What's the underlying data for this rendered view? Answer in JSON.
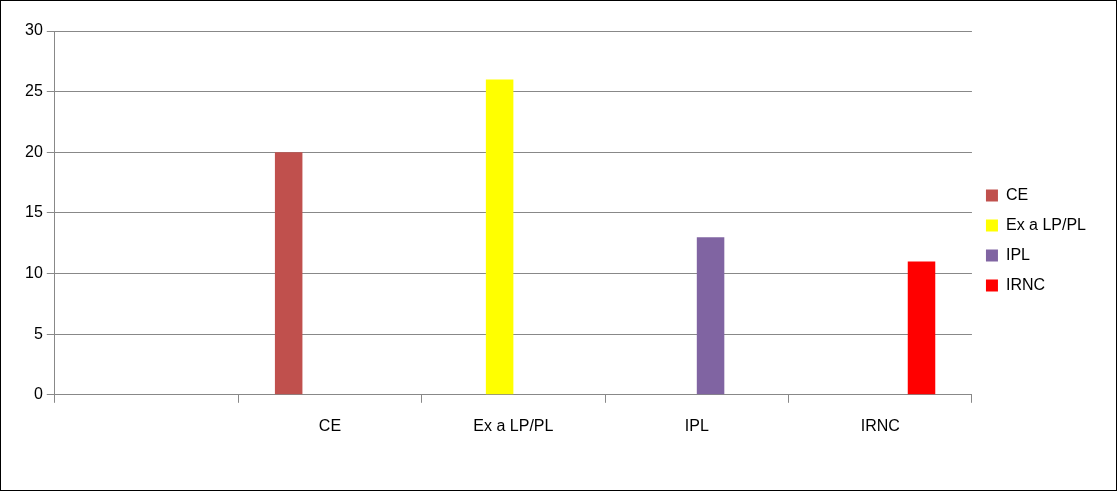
{
  "chart_data": {
    "type": "bar",
    "categories": [
      null,
      "CE",
      "Ex a LP/PL",
      "IPL",
      "IRNC"
    ],
    "series": [
      {
        "name": "CE",
        "color": "#c0504d",
        "values": [
          null,
          20,
          null,
          null,
          null
        ]
      },
      {
        "name": "Ex a LP/PL",
        "color": "#ffff00",
        "values": [
          null,
          null,
          26,
          null,
          null
        ]
      },
      {
        "name": "IPL",
        "color": "#8064a2",
        "values": [
          null,
          null,
          null,
          13,
          null
        ]
      },
      {
        "name": "IRNC",
        "color": "#ff0000",
        "values": [
          null,
          null,
          null,
          null,
          11
        ]
      }
    ],
    "ylim": [
      0,
      30
    ],
    "yticks": [
      0,
      5,
      10,
      15,
      20,
      25,
      30
    ],
    "grid": "y",
    "legend": "right"
  }
}
